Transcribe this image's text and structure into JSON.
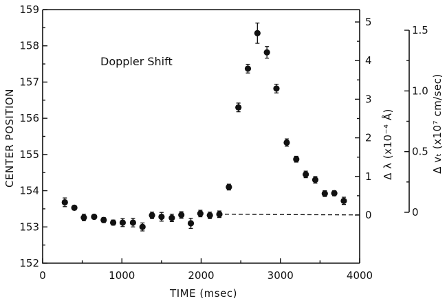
{
  "chart_data": {
    "type": "scatter",
    "title": "",
    "annotation": "Doppler Shift",
    "xlabel": "TIME (msec)",
    "ylabel": "CENTER POSITION",
    "y2label": "Δ λ (x10⁻⁴ Å)",
    "y3label": "Δ vₜ (x10⁷ cm/sec)",
    "xlim": [
      0,
      4000
    ],
    "ylim": [
      152,
      159
    ],
    "x_ticks": [
      "0",
      "1000",
      "2000",
      "3000",
      "4000"
    ],
    "y_ticks": [
      "152",
      "153",
      "154",
      "155",
      "156",
      "157",
      "158",
      "159"
    ],
    "y2_ticks": [
      "0",
      "1",
      "2",
      "3",
      "4",
      "5"
    ],
    "y3_ticks": [
      "0",
      "0.5",
      "1.0",
      "1.5"
    ],
    "grid": false,
    "baseline_y": 153.35,
    "points": [
      {
        "x": 280,
        "y": 153.68,
        "err": 0.12
      },
      {
        "x": 400,
        "y": 153.53,
        "err": 0.06
      },
      {
        "x": 520,
        "y": 153.26,
        "err": 0.09
      },
      {
        "x": 650,
        "y": 153.28,
        "err": 0.06
      },
      {
        "x": 770,
        "y": 153.19,
        "err": 0.07
      },
      {
        "x": 890,
        "y": 153.12,
        "err": 0.07
      },
      {
        "x": 1010,
        "y": 153.12,
        "err": 0.11
      },
      {
        "x": 1140,
        "y": 153.12,
        "err": 0.12
      },
      {
        "x": 1260,
        "y": 153.0,
        "err": 0.11
      },
      {
        "x": 1380,
        "y": 153.32,
        "err": 0.09
      },
      {
        "x": 1500,
        "y": 153.28,
        "err": 0.12
      },
      {
        "x": 1630,
        "y": 153.25,
        "err": 0.1
      },
      {
        "x": 1750,
        "y": 153.33,
        "err": 0.09
      },
      {
        "x": 1870,
        "y": 153.1,
        "err": 0.14
      },
      {
        "x": 1990,
        "y": 153.37,
        "err": 0.09
      },
      {
        "x": 2110,
        "y": 153.32,
        "err": 0.09
      },
      {
        "x": 2230,
        "y": 153.35,
        "err": 0.09
      },
      {
        "x": 2350,
        "y": 154.1,
        "err": 0.08
      },
      {
        "x": 2470,
        "y": 156.3,
        "err": 0.12
      },
      {
        "x": 2590,
        "y": 157.37,
        "err": 0.12
      },
      {
        "x": 2710,
        "y": 158.35,
        "err": 0.28
      },
      {
        "x": 2830,
        "y": 157.82,
        "err": 0.16
      },
      {
        "x": 2950,
        "y": 156.82,
        "err": 0.12
      },
      {
        "x": 3080,
        "y": 155.33,
        "err": 0.1
      },
      {
        "x": 3200,
        "y": 154.87,
        "err": 0.08
      },
      {
        "x": 3320,
        "y": 154.45,
        "err": 0.09
      },
      {
        "x": 3440,
        "y": 154.3,
        "err": 0.09
      },
      {
        "x": 3560,
        "y": 153.92,
        "err": 0.08
      },
      {
        "x": 3680,
        "y": 153.93,
        "err": 0.07
      },
      {
        "x": 3800,
        "y": 153.72,
        "err": 0.1
      }
    ]
  }
}
